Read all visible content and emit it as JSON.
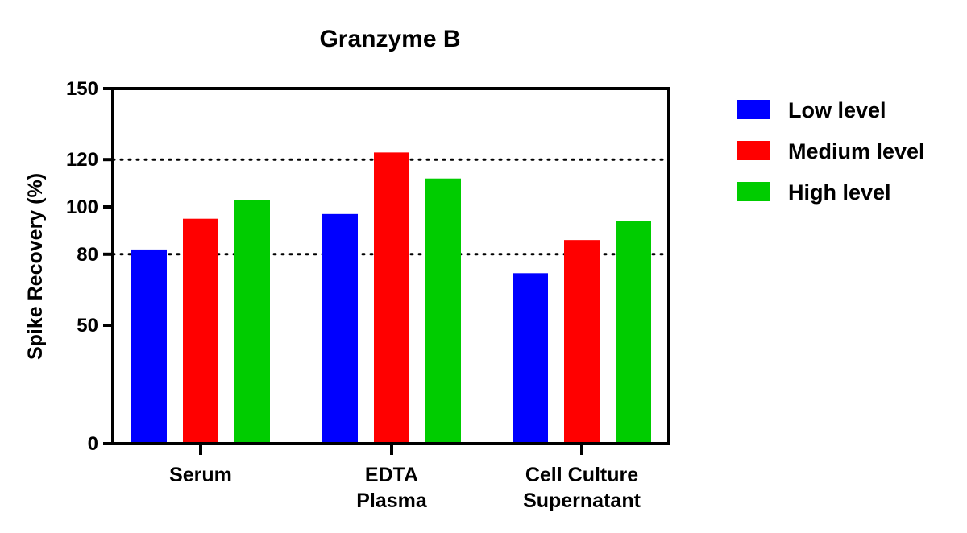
{
  "chart_data": {
    "type": "bar",
    "title": "Granzyme B",
    "ylabel": "Spike Recovery (%)",
    "xlabel": "",
    "categories": [
      [
        "Serum"
      ],
      [
        "EDTA",
        "Plasma"
      ],
      [
        "Cell Culture",
        "Supernatant"
      ]
    ],
    "series": [
      {
        "name": "Low level",
        "color": "#0000ff",
        "values": [
          82,
          97,
          72
        ]
      },
      {
        "name": "Medium level",
        "color": "#ff0000",
        "values": [
          95,
          123,
          86
        ]
      },
      {
        "name": "High level",
        "color": "#00cc00",
        "values": [
          103,
          112,
          94
        ]
      }
    ],
    "ylim": [
      0,
      150
    ],
    "yticks": [
      0,
      50,
      80,
      100,
      120,
      150
    ],
    "reference_lines": [
      80,
      120
    ],
    "grid": false,
    "legend_position": "right"
  }
}
